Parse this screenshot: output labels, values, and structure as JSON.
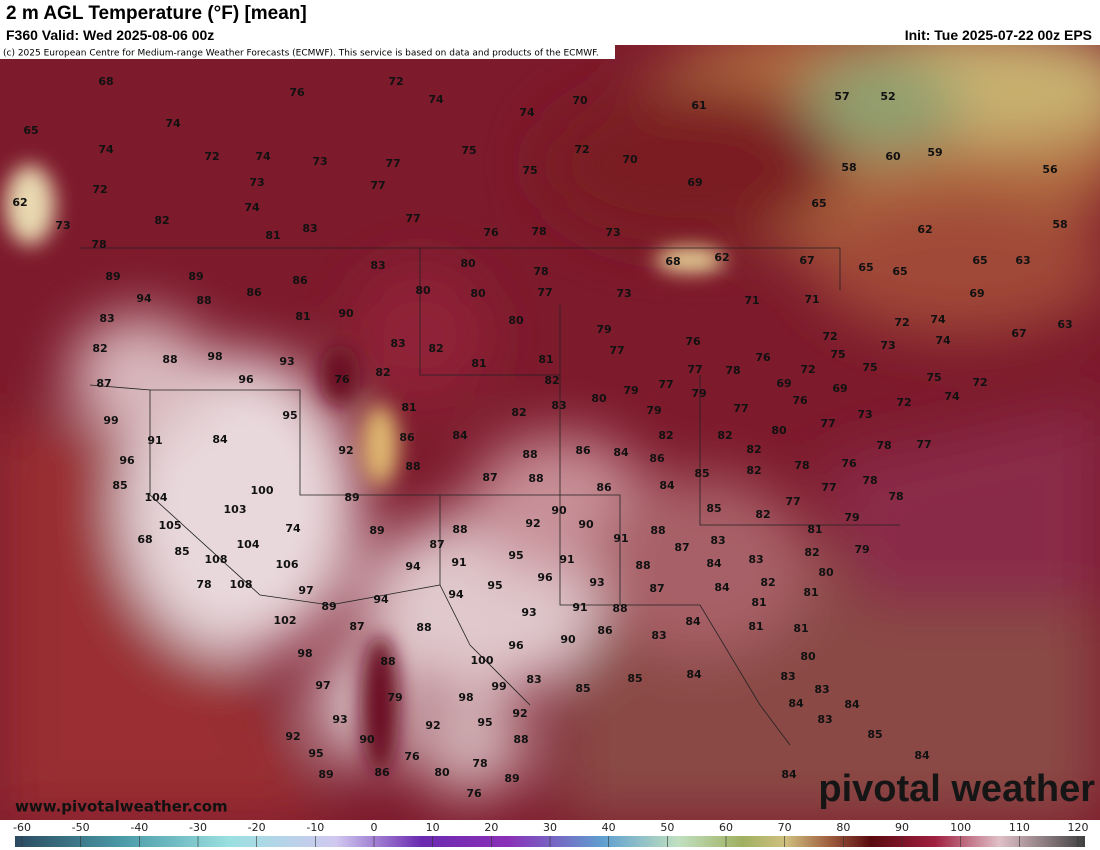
{
  "header": {
    "title": "2 m AGL Temperature (°F) [mean]",
    "valid": "F360 Valid: Wed 2025-08-06 00z",
    "init": "Init: Tue 2025-07-22 00z EPS",
    "credit": "(c) 2025 European Centre for Medium-range Weather Forecasts (ECMWF). This service is based on data and products of the ECMWF."
  },
  "map": {
    "labels": [
      68,
      72,
      76,
      74,
      70,
      65,
      74,
      74,
      61,
      57,
      52,
      74,
      72,
      74,
      73,
      77,
      75,
      72,
      70,
      60,
      59,
      56,
      72,
      73,
      77,
      75,
      69,
      58,
      62,
      82,
      74,
      77,
      65,
      73,
      81,
      83,
      76,
      78,
      73,
      62,
      58,
      78,
      62,
      68,
      67,
      65,
      65,
      63,
      89,
      89,
      86,
      83,
      80,
      78,
      94,
      88,
      86,
      80,
      80,
      77,
      73,
      71,
      71,
      65,
      69,
      83,
      81,
      90,
      80,
      79,
      72,
      74,
      67,
      63,
      82,
      88,
      98,
      93,
      83,
      82,
      81,
      81,
      77,
      76,
      72,
      73,
      74,
      87,
      96,
      76,
      82,
      82,
      77,
      77,
      78,
      76,
      75,
      72,
      75,
      69,
      75,
      72,
      69,
      99,
      95,
      81,
      82,
      83,
      80,
      79,
      79,
      77,
      76,
      72,
      74,
      91,
      84,
      86,
      84,
      79,
      82,
      82,
      80,
      77,
      73,
      77,
      96,
      92,
      88,
      88,
      86,
      84,
      86,
      82,
      78,
      76,
      85,
      87,
      88,
      82,
      85,
      78,
      78,
      104,
      100,
      89,
      86,
      84,
      85,
      77,
      77,
      78,
      103,
      105,
      90,
      90,
      92,
      82,
      79,
      68,
      74,
      89,
      88,
      91,
      88,
      81,
      85,
      104,
      108,
      87,
      95,
      91,
      83,
      82,
      79,
      106,
      94,
      91,
      96,
      88,
      87,
      84,
      83,
      78,
      108,
      97,
      95,
      93,
      87,
      84,
      82,
      80,
      89,
      94,
      94,
      91,
      88,
      81,
      81,
      102,
      87,
      88,
      93,
      84,
      81,
      81,
      86,
      83,
      90,
      98,
      88,
      96,
      80,
      100,
      97,
      79,
      98,
      99,
      83,
      85,
      85,
      84,
      83,
      83,
      93,
      92,
      95,
      92,
      84,
      84,
      83,
      92,
      90,
      88,
      85,
      95,
      76,
      78,
      84,
      89,
      86,
      80,
      89,
      84,
      76
    ],
    "watermark": "www.pivotalweather.com",
    "logo": "pivotal weather"
  },
  "colorbar": {
    "ticks": [
      -60,
      -50,
      -40,
      -30,
      -20,
      -10,
      0,
      10,
      20,
      30,
      40,
      50,
      60,
      70,
      80,
      90,
      100,
      110,
      120
    ]
  }
}
